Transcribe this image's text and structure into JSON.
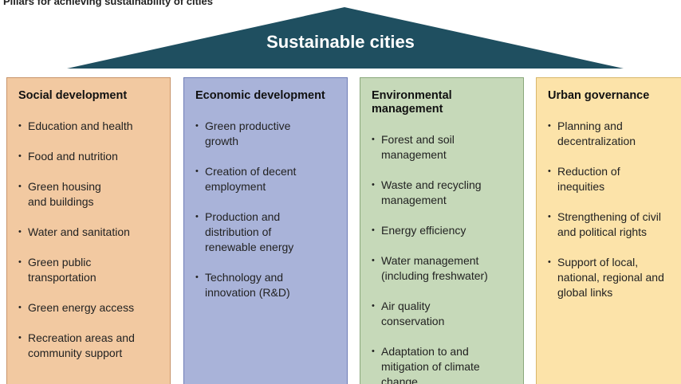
{
  "title": "Pillars for achieving sustainability of cities",
  "roof": "Sustainable cities",
  "pillars": [
    {
      "title": "Social development",
      "items": [
        "Education and health",
        "Food and nutrition",
        "Green housing\nand buildings",
        "Water and sanitation",
        "Green public\ntransportation",
        "Green energy access",
        "Recreation areas and\ncommunity support"
      ]
    },
    {
      "title": "Economic development",
      "items": [
        "Green productive\ngrowth",
        "Creation of decent\nemployment",
        "Production and\ndistribution of\nrenewable energy",
        "Technology and\ninnovation (R&D)"
      ]
    },
    {
      "title": "Environmental\nmanagement",
      "items": [
        "Forest and soil\nmanagement",
        "Waste and recycling\nmanagement",
        "Energy efficiency",
        "Water management\n(including freshwater)",
        "Air quality\nconservation",
        "Adaptation to and\nmitigation of climate\nchange"
      ]
    },
    {
      "title": "Urban governance",
      "items": [
        "Planning and\ndecentralization",
        "Reduction of\ninequities",
        "Strengthening of civil\nand political rights",
        "Support of local,\nnational, regional and\nglobal links"
      ]
    }
  ]
}
